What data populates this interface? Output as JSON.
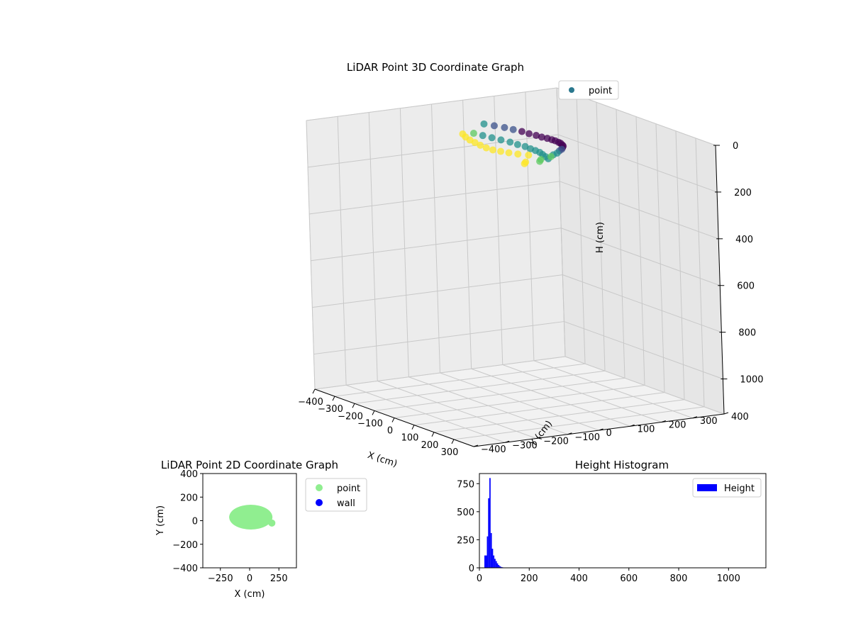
{
  "chart_data": [
    {
      "type": "scatter3d",
      "title": "LiDAR Point 3D Coordinate Graph",
      "xlabel": "X (cm)",
      "ylabel": "Y (cm)",
      "zlabel": "H (cm)",
      "xticks": [
        -400,
        -300,
        -200,
        -100,
        0,
        100,
        200,
        300
      ],
      "yticks": [
        -400,
        -300,
        -200,
        -100,
        0,
        100,
        200,
        300,
        400
      ],
      "zticks": [
        0,
        200,
        400,
        600,
        800,
        1000
      ],
      "xlim": [
        -400,
        400
      ],
      "ylim": [
        -400,
        400
      ],
      "zlim": [
        0,
        1150
      ],
      "z_inverted": true,
      "grid": true,
      "colormap": "viridis",
      "legend": {
        "position": "upper-right",
        "entries": [
          {
            "label": "point",
            "color": "#2a788e"
          }
        ]
      },
      "series": [
        {
          "name": "point",
          "description_points": "arc of points near H 0–100",
          "x": [
            -200,
            -180,
            -160,
            -140,
            -120,
            -100,
            -80,
            -60,
            -40,
            -20,
            0,
            20,
            40,
            60,
            80,
            100,
            120,
            140,
            160,
            180,
            200,
            -190,
            -160,
            -130,
            -100,
            -70,
            -40,
            -10,
            20,
            50,
            80,
            110,
            140,
            170,
            -150,
            -120,
            -90,
            -60,
            -30,
            0,
            30,
            60,
            90,
            120,
            150,
            180,
            190,
            150,
            160
          ],
          "y": [
            40,
            60,
            80,
            95,
            110,
            120,
            130,
            135,
            140,
            142,
            140,
            138,
            132,
            125,
            115,
            100,
            85,
            65,
            45,
            20,
            0,
            0,
            10,
            20,
            30,
            40,
            45,
            50,
            48,
            45,
            40,
            30,
            20,
            10,
            -60,
            -70,
            -75,
            -78,
            -80,
            -80,
            -78,
            -72,
            -65,
            -55,
            -40,
            -20,
            -30,
            -50,
            -60
          ],
          "z": [
            30,
            35,
            40,
            45,
            50,
            55,
            58,
            60,
            60,
            60,
            58,
            58,
            55,
            55,
            52,
            50,
            48,
            45,
            45,
            42,
            40,
            60,
            62,
            64,
            66,
            68,
            70,
            70,
            70,
            68,
            66,
            64,
            62,
            60,
            40,
            42,
            45,
            46,
            48,
            50,
            50,
            48,
            46,
            44,
            42,
            55,
            58,
            70,
            72
          ]
        }
      ]
    },
    {
      "type": "scatter",
      "title": "LiDAR Point 2D Coordinate Graph",
      "xlabel": "X (cm)",
      "ylabel": "Y (cm)",
      "xticks": [
        -250,
        0,
        250
      ],
      "yticks": [
        -400,
        -200,
        0,
        200,
        400
      ],
      "xlim": [
        -400,
        400
      ],
      "ylim": [
        -400,
        400
      ],
      "legend": {
        "position": "outside-right",
        "entries": [
          {
            "label": "point",
            "color": "#90ee90"
          },
          {
            "label": "wall",
            "color": "#0000ff"
          }
        ]
      },
      "series": [
        {
          "name": "point",
          "color": "#90ee90",
          "blob": {
            "cx": 10,
            "cy": 30,
            "rx": 185,
            "ry": 105
          },
          "extra": [
            {
              "x": 190,
              "y": -20
            }
          ]
        },
        {
          "name": "wall",
          "color": "#0000ff",
          "x": [],
          "y": []
        }
      ]
    },
    {
      "type": "histogram",
      "title": "Height Histogram",
      "xticks": [
        0,
        200,
        400,
        600,
        800,
        1000
      ],
      "yticks": [
        0,
        250,
        500,
        750
      ],
      "xlim": [
        0,
        1150
      ],
      "ylim": [
        0,
        840
      ],
      "color": "#0000ff",
      "legend": {
        "position": "upper-right",
        "entries": [
          {
            "label": "Height",
            "color": "#0000ff"
          }
        ]
      },
      "bin_edges": [
        20,
        30,
        35,
        40,
        45,
        50,
        55,
        60,
        65,
        70,
        75,
        80,
        85,
        90,
        95,
        100
      ],
      "counts": [
        110,
        280,
        620,
        800,
        310,
        170,
        110,
        80,
        60,
        40,
        25,
        15,
        8,
        5,
        2
      ]
    }
  ]
}
